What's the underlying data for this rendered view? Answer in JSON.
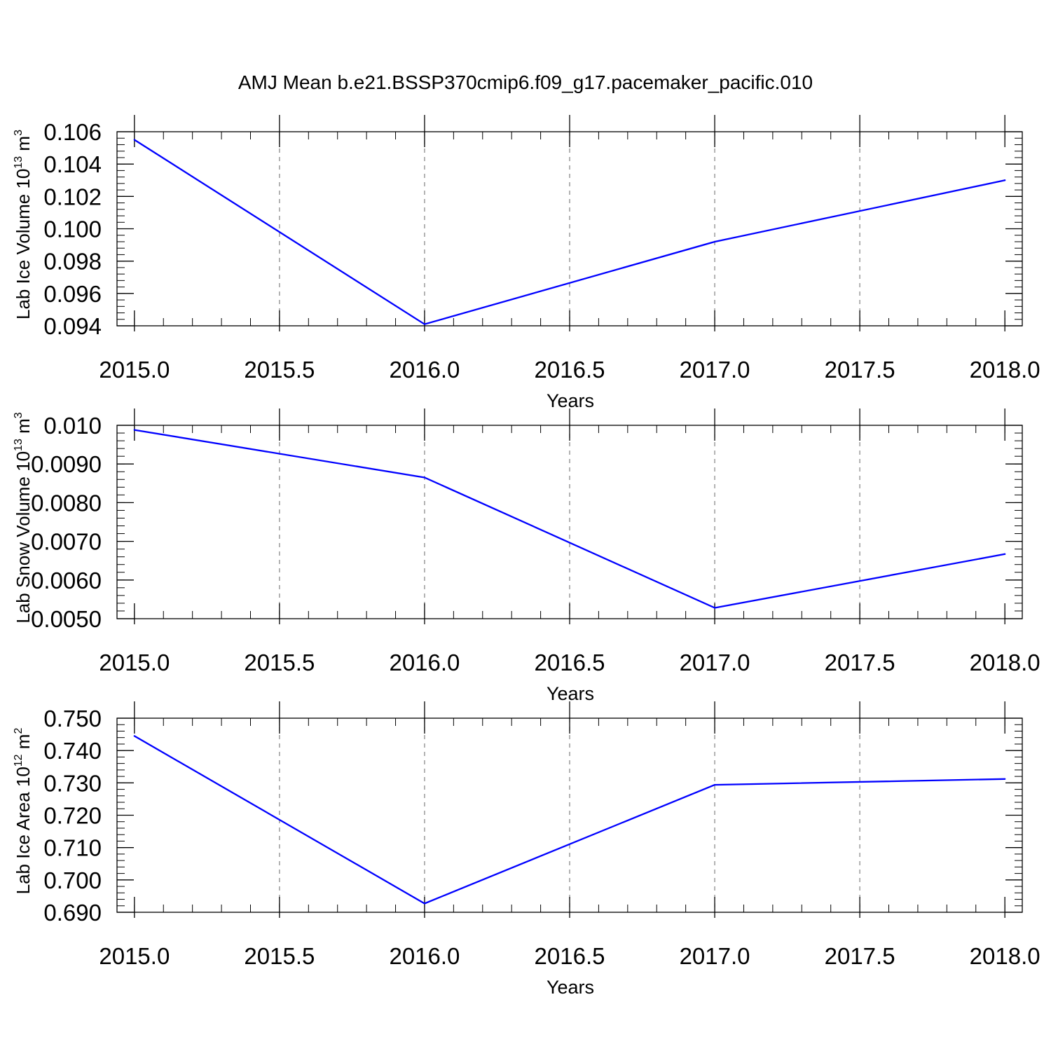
{
  "figure": {
    "title": "AMJ Mean b.e21.BSSP370cmip6.f09_g17.pacemaker_pacific.010"
  },
  "colors": {
    "line": "#0000ff",
    "axes": "#000000",
    "grid": "#808080",
    "background": "#ffffff"
  },
  "chart_data": [
    {
      "type": "line",
      "title": "",
      "xlabel": "Years",
      "ylabel": {
        "prefix": "Lab Ice Volume 10",
        "exponent": "13",
        "unit": " m",
        "unit_exponent": "3"
      },
      "xlim": [
        2014.94,
        2018.06
      ],
      "ylim": [
        0.094,
        0.106
      ],
      "xticks": [
        2015.0,
        2015.5,
        2016.0,
        2016.5,
        2017.0,
        2017.5,
        2018.0
      ],
      "xtick_labels": [
        "2015.0",
        "2015.5",
        "2016.0",
        "2016.5",
        "2017.0",
        "2017.5",
        "2018.0"
      ],
      "yticks": [
        0.094,
        0.096,
        0.098,
        0.1,
        0.102,
        0.104,
        0.106
      ],
      "ytick_labels": [
        "0.094",
        "0.096",
        "0.098",
        "0.100",
        "0.102",
        "0.104",
        "0.106"
      ],
      "y_minor_step": 0.0004,
      "x_minor_step": 0.1,
      "grid": "vertical dashed at major x ticks",
      "series": [
        {
          "x": [
            2015,
            2016,
            2017,
            2018
          ],
          "y": [
            0.1055,
            0.0941,
            0.0992,
            0.103
          ]
        }
      ]
    },
    {
      "type": "line",
      "title": "",
      "xlabel": "Years",
      "ylabel": {
        "prefix": "Lab Snow Volume 10",
        "exponent": "13",
        "unit": " m",
        "unit_exponent": "3"
      },
      "xlim": [
        2014.94,
        2018.06
      ],
      "ylim": [
        0.005,
        0.01
      ],
      "xticks": [
        2015.0,
        2015.5,
        2016.0,
        2016.5,
        2017.0,
        2017.5,
        2018.0
      ],
      "xtick_labels": [
        "2015.0",
        "2015.5",
        "2016.0",
        "2016.5",
        "2017.0",
        "2017.5",
        "2018.0"
      ],
      "yticks": [
        0.005,
        0.006,
        0.007,
        0.008,
        0.009,
        0.01
      ],
      "ytick_labels": [
        "0.0050",
        "0.0060",
        "0.0070",
        "0.0080",
        "0.0090",
        "0.010"
      ],
      "y_minor_step": 0.0002,
      "x_minor_step": 0.1,
      "grid": "vertical dashed at major x ticks",
      "series": [
        {
          "x": [
            2015,
            2016,
            2017,
            2018
          ],
          "y": [
            0.00988,
            0.00865,
            0.00528,
            0.00667
          ]
        }
      ]
    },
    {
      "type": "line",
      "title": "",
      "xlabel": "Years",
      "ylabel": {
        "prefix": "Lab Ice Area 10",
        "exponent": "12",
        "unit": " m",
        "unit_exponent": "2"
      },
      "xlim": [
        2014.94,
        2018.06
      ],
      "ylim": [
        0.69,
        0.75
      ],
      "xticks": [
        2015.0,
        2015.5,
        2016.0,
        2016.5,
        2017.0,
        2017.5,
        2018.0
      ],
      "xtick_labels": [
        "2015.0",
        "2015.5",
        "2016.0",
        "2016.5",
        "2017.0",
        "2017.5",
        "2018.0"
      ],
      "yticks": [
        0.69,
        0.7,
        0.71,
        0.72,
        0.73,
        0.74,
        0.75
      ],
      "ytick_labels": [
        "0.690",
        "0.700",
        "0.710",
        "0.720",
        "0.730",
        "0.740",
        "0.750"
      ],
      "y_minor_step": 0.002,
      "x_minor_step": 0.1,
      "grid": "vertical dashed at major x ticks",
      "series": [
        {
          "x": [
            2015,
            2016,
            2017,
            2018
          ],
          "y": [
            0.7445,
            0.6927,
            0.7294,
            0.7312
          ]
        }
      ]
    }
  ]
}
